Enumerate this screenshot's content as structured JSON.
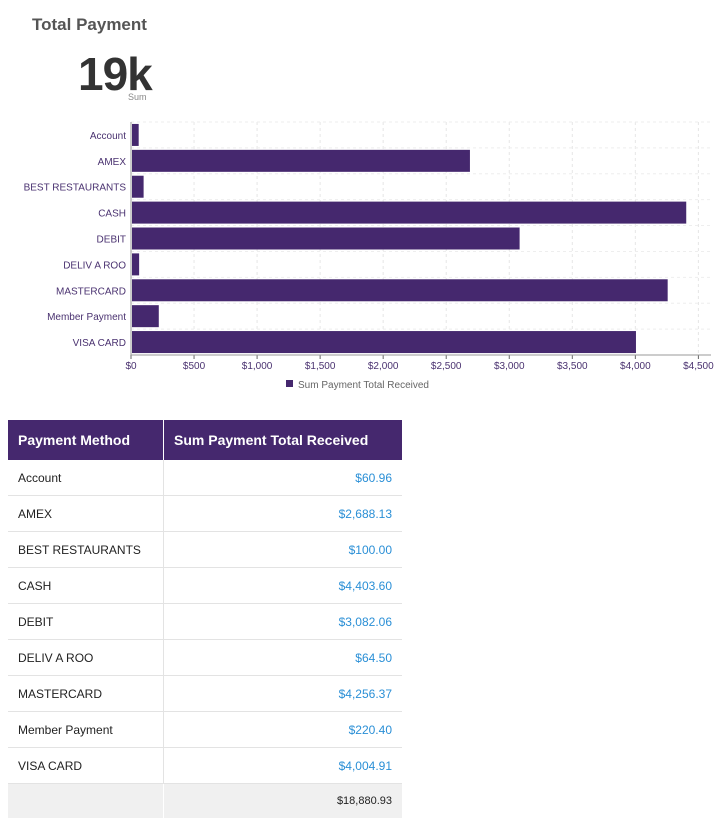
{
  "title": "Total Payment",
  "kpi": {
    "value": "19k",
    "label": "Sum"
  },
  "chart_data": {
    "type": "bar",
    "orientation": "horizontal",
    "categories": [
      "Account",
      "AMEX",
      "BEST RESTAURANTS",
      "CASH",
      "DEBIT",
      "DELIV A ROO",
      "MASTERCARD",
      "Member Payment",
      "VISA CARD"
    ],
    "series": [
      {
        "name": "Sum Payment Total Received",
        "values": [
          60.96,
          2688.13,
          100.0,
          4403.6,
          3082.06,
          64.5,
          4256.37,
          220.4,
          4004.91
        ]
      }
    ],
    "xlim": [
      0,
      4600
    ],
    "x_ticks": [
      0,
      500,
      1000,
      1500,
      2000,
      2500,
      3000,
      3500,
      4000,
      4500
    ],
    "x_tick_labels": [
      "$0",
      "$500",
      "$1,000",
      "$1,500",
      "$2,000",
      "$2,500",
      "$3,000",
      "$3,500",
      "$4,000",
      "$4,500"
    ],
    "grid": true,
    "legend": "bottom-center",
    "color": "#45286e"
  },
  "table": {
    "headers": [
      "Payment Method",
      "Sum Payment Total Received"
    ],
    "rows": [
      {
        "method": "Account",
        "value": "$60.96"
      },
      {
        "method": "AMEX",
        "value": "$2,688.13"
      },
      {
        "method": "BEST RESTAURANTS",
        "value": "$100.00"
      },
      {
        "method": "CASH",
        "value": "$4,403.60"
      },
      {
        "method": "DEBIT",
        "value": "$3,082.06"
      },
      {
        "method": "DELIV A ROO",
        "value": "$64.50"
      },
      {
        "method": "MASTERCARD",
        "value": "$4,256.37"
      },
      {
        "method": "Member Payment",
        "value": "$220.40"
      },
      {
        "method": "VISA CARD",
        "value": "$4,004.91"
      }
    ],
    "total": "$18,880.93"
  }
}
